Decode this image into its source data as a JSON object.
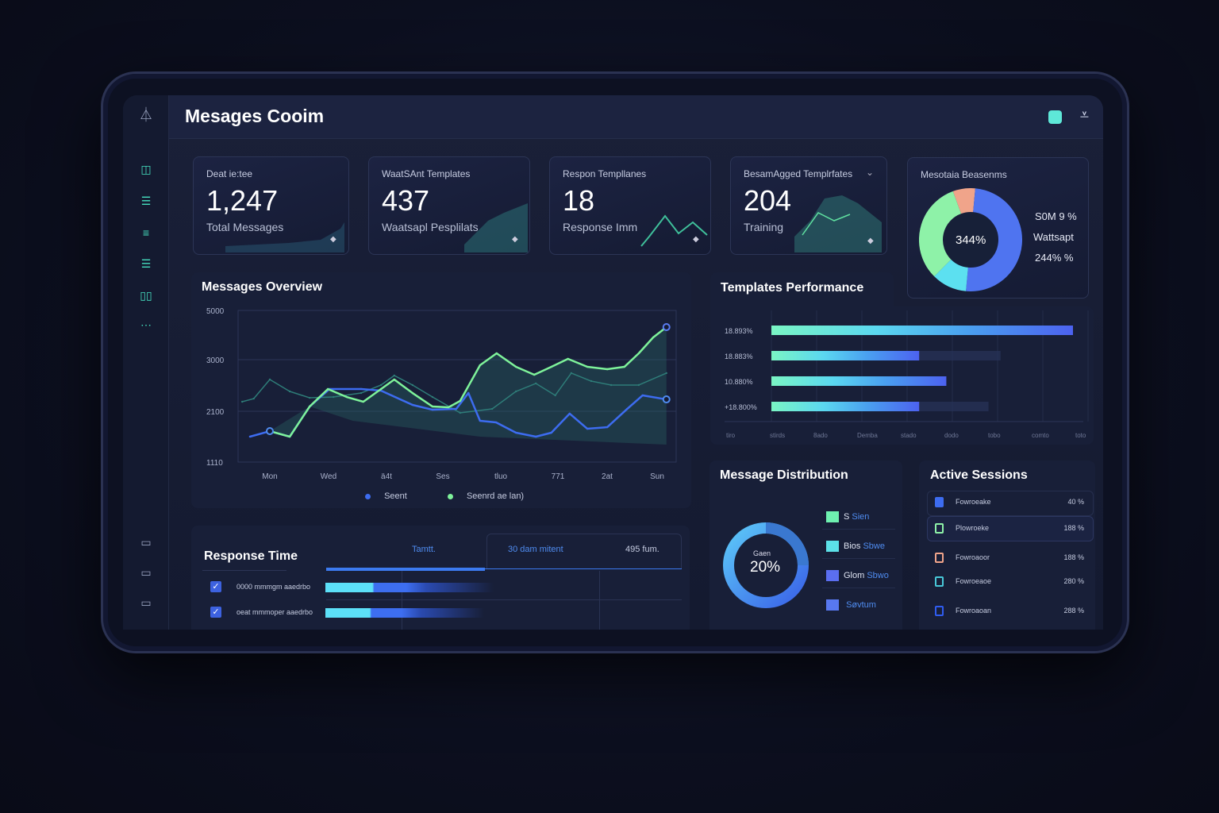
{
  "header": {
    "title": "Mesages Cooim"
  },
  "kpis": [
    {
      "title": "Deat ie:tee",
      "value": "1,247",
      "subtitle": "Total Messages"
    },
    {
      "title": "WaatSAnt Templates",
      "value": "437",
      "subtitle": "Waatsapl Pesplilats"
    },
    {
      "title": "Respon Templlanes",
      "value": "18",
      "subtitle": "Response Imm"
    },
    {
      "title": "BesamAgged Templrfates",
      "value": "204",
      "subtitle": "Training"
    }
  ],
  "donut_card": {
    "title": "Mesotaia Beasenms",
    "center": "344%",
    "labels": [
      "S0M 9 %",
      "Wattsapt",
      "244% %"
    ],
    "slices": [
      {
        "color": "#f0a48a",
        "pct": 7
      },
      {
        "color": "#4f74f0",
        "pct": 50
      },
      {
        "color": "#5ce0f0",
        "pct": 11
      },
      {
        "color": "#8ef2a8",
        "pct": 32
      }
    ]
  },
  "overview": {
    "title": "Messages Overview",
    "chart_data": {
      "type": "line",
      "yticks": [
        "5000",
        "3000",
        "2100",
        "1110"
      ],
      "categories": [
        "Mon",
        "Wed",
        "ä4t",
        "Ses",
        "tluo",
        "771",
        "2at",
        "Sun"
      ],
      "series": [
        {
          "name": "Seent",
          "color": "#3d6cf0",
          "x": [
            -0.36,
            0,
            0.36,
            0.72,
            1.08,
            1.65,
            2.01,
            2.58,
            2.94,
            3.37,
            3.59,
            3.8,
            4.09,
            4.45,
            4.81,
            5.09,
            5.42,
            5.74,
            6.1,
            6.46,
            6.74,
            7.17
          ],
          "y": [
            1605,
            1713,
            1605,
            2183,
            2488,
            2488,
            2460,
            2211,
            2127,
            2141,
            2418,
            1914,
            1883,
            1682,
            1605,
            1682,
            2054,
            1759,
            1790,
            2141,
            2377,
            2307
          ]
        },
        {
          "name": "Seenrd ae lan)",
          "color": "#7ef29a",
          "x": [
            0,
            0.36,
            0.72,
            1.05,
            1.39,
            1.69,
            2.01,
            2.25,
            2.58,
            2.94,
            3.23,
            3.44,
            3.8,
            4.1,
            4.45,
            4.78,
            5.09,
            5.39,
            5.74,
            6.1,
            6.41,
            6.67,
            6.93,
            7.17
          ],
          "y": [
            1713,
            1605,
            2183,
            2488,
            2349,
            2266,
            2488,
            2654,
            2418,
            2183,
            2169,
            2280,
            2903,
            3258,
            2875,
            2737,
            2875,
            3032,
            2875,
            2834,
            2875,
            3258,
            3903,
            4323
          ]
        },
        {
          "color": "#2e7c78",
          "x": [
            -0.5,
            -0.29,
            0,
            0.36,
            0.72,
            1.15,
            1.65,
            2.01,
            2.25,
            2.58,
            2.94,
            3.44,
            4.02,
            4.45,
            4.81,
            5.16,
            5.45,
            5.81,
            6.17,
            6.67,
            7.17
          ],
          "y": [
            2266,
            2321,
            2654,
            2446,
            2335,
            2349,
            2418,
            2557,
            2723,
            2557,
            2349,
            2069,
            2141,
            2446,
            2585,
            2377,
            2765,
            2626,
            2557,
            2557,
            2765
          ]
        }
      ]
    }
  },
  "templates": {
    "title": "Templates Performance",
    "chart_data": {
      "type": "bar",
      "categories": [
        "18.893%",
        "18.883%",
        "10.880%",
        "+18.800%"
      ],
      "values": [
        100,
        49,
        58,
        49
      ],
      "track": [
        100,
        76,
        58,
        72
      ],
      "xticks": [
        "tiro",
        "stirds",
        "8ado",
        "Demba",
        "stado",
        "dodo",
        "tobo",
        "comto",
        "toto"
      ]
    }
  },
  "response": {
    "title": "Response Time",
    "columns": [
      "Tamtt.",
      "30 dam mitent",
      "495 fum."
    ],
    "rows": [
      {
        "label": "0000 mmmgm aaedrbo",
        "value": 55
      },
      {
        "label": "oeat mmmoper aaedrbo",
        "value": 52
      }
    ]
  },
  "distribution": {
    "title": "Message Distribution",
    "center_label": "Gaen",
    "center_value": "20%",
    "legend": [
      {
        "a": "S",
        "b": "Sien",
        "color": "#6ef0b0"
      },
      {
        "a": "Bios",
        "b": "Sbwe",
        "color": "#5ce0e8"
      },
      {
        "a": "Glom",
        "b": "Sbwo",
        "color": "#5b6ef0"
      },
      {
        "a": "",
        "b": "Søvtum",
        "color": "#5878f0"
      }
    ]
  },
  "sessions": {
    "title": "Active Sessions",
    "rows": [
      {
        "name": "Fowroeake",
        "value": "40 %",
        "color": "#3d6cf0"
      },
      {
        "name": "Plowroeke",
        "value": "188 %",
        "color": "#8ef2a8"
      },
      {
        "name": "Fowroaoor",
        "value": "188 %",
        "color": "#f0a48a"
      },
      {
        "name": "Fowroeaoe",
        "value": "280 %",
        "color": "#48c8d8"
      },
      {
        "name": "Fowroaoan",
        "value": "288 %",
        "color": "#2f5cf0"
      }
    ]
  }
}
